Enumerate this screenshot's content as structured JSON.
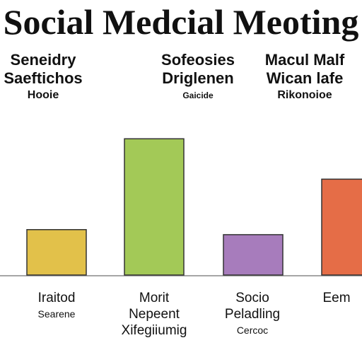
{
  "chart_data": {
    "type": "bar",
    "title": "Social Medcial Meoting",
    "header_groups": [
      {
        "lines": [
          "Seneidry",
          "Saeftichos",
          "Hooie"
        ]
      },
      {
        "lines": [
          "Sofeosies",
          "Driglenen",
          "Gaicide"
        ]
      },
      {
        "lines": [
          "Macul Malf",
          "Wican lafe",
          "Rikonoioe"
        ]
      }
    ],
    "categories": [
      {
        "lines": [
          "Iraitod",
          "Searene"
        ]
      },
      {
        "lines": [
          "Morit",
          "Nepeent",
          "Xifegiiumig"
        ]
      },
      {
        "lines": [
          "Socio",
          "Peladling",
          "Cercoc"
        ]
      },
      {
        "lines": [
          "Eem"
        ]
      }
    ],
    "values": [
      18,
      54,
      16,
      38
    ],
    "colors": [
      "#e2c14a",
      "#a3c957",
      "#a77cbc",
      "#e56d47"
    ],
    "ylim": [
      0,
      58
    ],
    "grid": false
  }
}
